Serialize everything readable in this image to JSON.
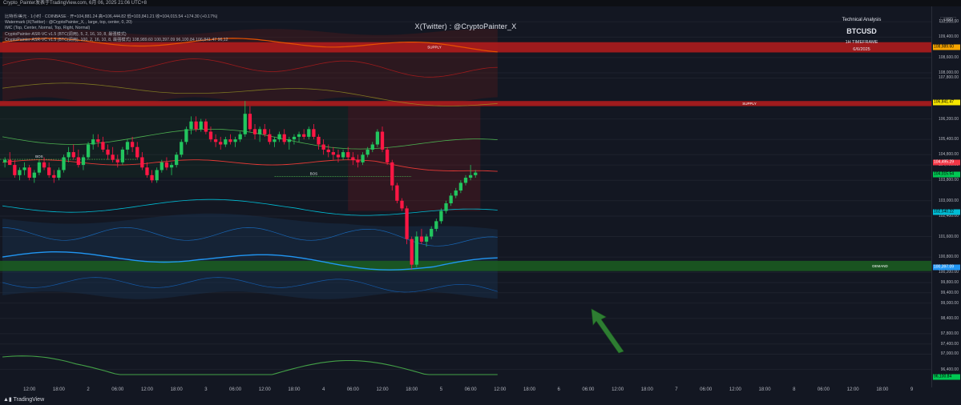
{
  "header": {
    "topbar_text": "Crypto_Painter发表于TradingView.com, 6月 06, 2025 21:06 UTC+8"
  },
  "legend": {
    "lines": [
      "比特币/美元 · 1小时 · COINBASE · 开=104,881.24 高=106,444.82 低=103,841.21 收=104,015.54 +174.30 (+0.17%)",
      "Watermark (X(Twitter) : @CryptoPainter_X, , large, top, center, 0, 20)",
      "IMC (Top, Center, Normal, Top, Right, Normal)",
      "CryptoPainter-ASR-VC v1.5 (BTC(调用), 5, 2, 16, 10, 8, 最强模式)",
      "CryptoPainter-ASR-VC v1.5 (BTC(调用), 100, 2, 16, 10, 8, 最强模式)   108,989.60   100,397.09   96,100.84   106,841.47   96,12"
    ]
  },
  "watermark": "X(Twitter) : @CryptoPainter_X",
  "info": {
    "title": "Technical Analysis",
    "symbol": "BTCUSD",
    "timeframe": "1H TIMEFRAME",
    "date": "6/6/2025"
  },
  "currency": "USD",
  "price_axis": {
    "labels": [
      "110,000.00",
      "109,400.00",
      "108,600.00",
      "108,000.00",
      "107,800.00",
      "106,800.00",
      "106,200.00",
      "105,400.00",
      "104,800.00",
      "104,400.00",
      "103,800.00",
      "103,000.00",
      "102,400.00",
      "101,600.00",
      "100,800.00",
      "100,200.00",
      "99,800.00",
      "99,400.00",
      "99,000.00",
      "98,400.00",
      "97,800.00",
      "97,400.00",
      "97,000.00",
      "96,400.00"
    ],
    "tags": [
      {
        "text": "108,989.60",
        "color": "#f7a600",
        "price": 108989.6
      },
      {
        "text": "106,841.47",
        "color": "#f7e600",
        "price": 106841.47
      },
      {
        "text": "104,495.29",
        "color": "#f23645",
        "price": 104495.29
      },
      {
        "text": "104,015.54",
        "color": "#00c853",
        "price": 104015.54
      },
      {
        "text": "102,540.22",
        "color": "#00bcd4",
        "price": 102540.22
      },
      {
        "text": "100,397.09",
        "color": "#2196f3",
        "price": 100397.09
      },
      {
        "text": "96,100.84",
        "color": "#00c853",
        "price": 96100.84
      }
    ]
  },
  "time_axis": {
    "labels": [
      {
        "text": "12:00",
        "h": 6
      },
      {
        "text": "18:00",
        "h": 12
      },
      {
        "text": "2",
        "h": 18
      },
      {
        "text": "06:00",
        "h": 24
      },
      {
        "text": "12:00",
        "h": 30
      },
      {
        "text": "18:00",
        "h": 36
      },
      {
        "text": "3",
        "h": 42
      },
      {
        "text": "06:00",
        "h": 48
      },
      {
        "text": "12:00",
        "h": 54
      },
      {
        "text": "18:00",
        "h": 60
      },
      {
        "text": "4",
        "h": 66
      },
      {
        "text": "06:00",
        "h": 72
      },
      {
        "text": "12:00",
        "h": 78
      },
      {
        "text": "18:00",
        "h": 84
      },
      {
        "text": "5",
        "h": 90
      },
      {
        "text": "06:00",
        "h": 96
      },
      {
        "text": "12:00",
        "h": 102
      },
      {
        "text": "18:00",
        "h": 108
      },
      {
        "text": "6",
        "h": 114
      },
      {
        "text": "06:00",
        "h": 120
      },
      {
        "text": "12:00",
        "h": 126
      },
      {
        "text": "18:00",
        "h": 132
      },
      {
        "text": "7",
        "h": 138
      },
      {
        "text": "06:00",
        "h": 144
      },
      {
        "text": "12:00",
        "h": 150
      },
      {
        "text": "18:00",
        "h": 156
      },
      {
        "text": "8",
        "h": 162
      },
      {
        "text": "06:00",
        "h": 168
      },
      {
        "text": "12:00",
        "h": 174
      },
      {
        "text": "18:00",
        "h": 180
      },
      {
        "text": "9",
        "h": 186
      }
    ]
  },
  "zones": [
    {
      "label": "SUPPLY",
      "kind": "supply",
      "top": 109200,
      "bottom": 108800
    },
    {
      "label": "SUPPLY",
      "kind": "supply",
      "top": 106900,
      "bottom": 106700
    },
    {
      "label": "DEMAND",
      "kind": "demand",
      "top": 100650,
      "bottom": 100250
    }
  ],
  "zone_colors": {
    "supply": "#b71c1c",
    "demand": "#1b5e20",
    "bos": "#4caf50"
  },
  "markers": [
    {
      "text": "BOS",
      "h": 8,
      "price": 104620
    },
    {
      "text": "BOS",
      "h": 64,
      "price": 103950
    }
  ],
  "brand": "TradingView",
  "chart_data": {
    "type": "candlestick",
    "ylim": [
      95700,
      110600
    ],
    "xlim": [
      0,
      190
    ],
    "candles": [
      [
        104500,
        104700,
        104300,
        104600
      ],
      [
        104600,
        104900,
        104400,
        104400
      ],
      [
        104400,
        104600,
        103900,
        104000
      ],
      [
        104000,
        104300,
        103800,
        104200
      ],
      [
        104200,
        104500,
        104000,
        104300
      ],
      [
        104300,
        104400,
        103800,
        103900
      ],
      [
        103900,
        104200,
        103700,
        104100
      ],
      [
        104100,
        104600,
        104000,
        104500
      ],
      [
        104500,
        104700,
        104200,
        104300
      ],
      [
        104300,
        104500,
        103900,
        104000
      ],
      [
        104000,
        104200,
        103700,
        103900
      ],
      [
        103900,
        104300,
        103800,
        104200
      ],
      [
        104200,
        104800,
        104100,
        104700
      ],
      [
        104700,
        105100,
        104500,
        104900
      ],
      [
        104900,
        105200,
        104600,
        104700
      ],
      [
        104700,
        105000,
        104300,
        104400
      ],
      [
        104400,
        104800,
        104200,
        104700
      ],
      [
        104700,
        105300,
        104600,
        105200
      ],
      [
        105200,
        105600,
        105000,
        105400
      ],
      [
        105400,
        105600,
        105100,
        105300
      ],
      [
        105300,
        105500,
        104900,
        105000
      ],
      [
        105000,
        105200,
        104600,
        104800
      ],
      [
        104800,
        105100,
        104500,
        104600
      ],
      [
        104600,
        104800,
        104300,
        104500
      ],
      [
        104500,
        105100,
        104400,
        105000
      ],
      [
        105000,
        105400,
        104800,
        105300
      ],
      [
        105300,
        105500,
        104900,
        105100
      ],
      [
        105100,
        105300,
        104600,
        104700
      ],
      [
        104700,
        104900,
        104200,
        104300
      ],
      [
        104300,
        104500,
        103900,
        104000
      ],
      [
        104000,
        104200,
        103700,
        103800
      ],
      [
        103800,
        104300,
        103700,
        104200
      ],
      [
        104200,
        104600,
        104100,
        104500
      ],
      [
        104500,
        104700,
        104200,
        104300
      ],
      [
        104300,
        104500,
        104000,
        104400
      ],
      [
        104400,
        104900,
        104300,
        104800
      ],
      [
        104800,
        105400,
        104700,
        105300
      ],
      [
        105300,
        105900,
        105200,
        105800
      ],
      [
        105800,
        106300,
        105600,
        106100
      ],
      [
        106100,
        106300,
        105700,
        105800
      ],
      [
        105800,
        106200,
        105700,
        106100
      ],
      [
        106100,
        106200,
        105600,
        105700
      ],
      [
        105700,
        105900,
        105300,
        105400
      ],
      [
        105400,
        105600,
        105100,
        105300
      ],
      [
        105300,
        105500,
        105000,
        105200
      ],
      [
        105200,
        105500,
        105100,
        105400
      ],
      [
        105400,
        105600,
        105200,
        105300
      ],
      [
        105300,
        105500,
        105100,
        105400
      ],
      [
        105400,
        105700,
        105300,
        105600
      ],
      [
        105600,
        106900,
        105500,
        106400
      ],
      [
        106400,
        106700,
        105700,
        105800
      ],
      [
        105800,
        106000,
        105400,
        105600
      ],
      [
        105600,
        105900,
        105300,
        105800
      ],
      [
        105800,
        106000,
        105500,
        105600
      ],
      [
        105600,
        105800,
        105200,
        105300
      ],
      [
        105300,
        105500,
        105100,
        105400
      ],
      [
        105400,
        105700,
        105300,
        105600
      ],
      [
        105600,
        105800,
        105200,
        105300
      ],
      [
        105300,
        105500,
        105000,
        105400
      ],
      [
        105400,
        105600,
        105200,
        105500
      ],
      [
        105500,
        105700,
        105300,
        105600
      ],
      [
        105600,
        105800,
        105400,
        105500
      ],
      [
        105500,
        105900,
        105400,
        105800
      ],
      [
        105800,
        106000,
        105400,
        105500
      ],
      [
        105500,
        105600,
        105000,
        105200
      ],
      [
        105200,
        105400,
        104800,
        105000
      ],
      [
        105000,
        105200,
        104700,
        104900
      ],
      [
        104900,
        105100,
        104600,
        104800
      ],
      [
        104800,
        105000,
        104500,
        104700
      ],
      [
        104700,
        105000,
        104600,
        104900
      ],
      [
        104900,
        105100,
        104600,
        104700
      ],
      [
        104700,
        104900,
        104400,
        104600
      ],
      [
        104600,
        104800,
        104300,
        104500
      ],
      [
        104500,
        104900,
        104400,
        104800
      ],
      [
        104800,
        105100,
        104700,
        105000
      ],
      [
        105000,
        105300,
        104900,
        105200
      ],
      [
        105200,
        105800,
        105100,
        105700
      ],
      [
        105700,
        105900,
        104900,
        105000
      ],
      [
        105000,
        105100,
        104400,
        104500
      ],
      [
        104500,
        104600,
        103400,
        103600
      ],
      [
        103600,
        103700,
        102900,
        103000
      ],
      [
        103000,
        103100,
        102600,
        102700
      ],
      [
        102700,
        102800,
        101300,
        101500
      ],
      [
        101500,
        101600,
        100300,
        100500
      ],
      [
        100500,
        101800,
        100400,
        101600
      ],
      [
        101600,
        101900,
        101300,
        101400
      ],
      [
        101400,
        101700,
        101200,
        101600
      ],
      [
        101600,
        102000,
        101500,
        101900
      ],
      [
        101900,
        102300,
        101800,
        102200
      ],
      [
        102200,
        102700,
        102100,
        102600
      ],
      [
        102600,
        103000,
        102500,
        102900
      ],
      [
        102900,
        103300,
        102800,
        103200
      ],
      [
        103200,
        103500,
        103100,
        103400
      ],
      [
        103400,
        103800,
        103300,
        103700
      ],
      [
        103700,
        104000,
        103600,
        103900
      ],
      [
        103900,
        104400,
        103800,
        104000
      ],
      [
        104000,
        104200,
        103900,
        104100
      ]
    ],
    "series": [
      {
        "name": "ASR-VC (100) upper band",
        "color": "#e65100"
      },
      {
        "name": "ASR-VC (100) mid",
        "color": "#e53935"
      },
      {
        "name": "ASR-VC (100) lower",
        "color": "#00bcd4"
      },
      {
        "name": "ASR-VC (100) base",
        "color": "#2196f3"
      }
    ]
  }
}
